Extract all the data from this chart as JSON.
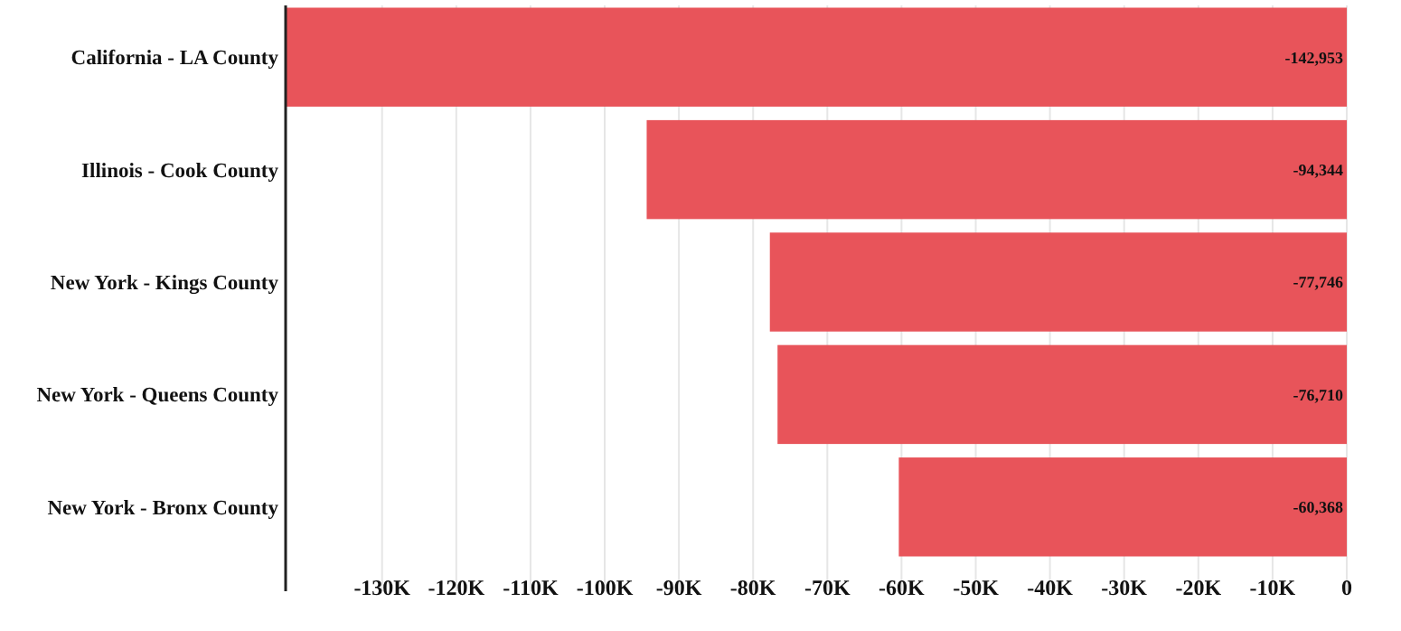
{
  "chart_data": {
    "type": "bar",
    "orientation": "horizontal",
    "categories": [
      "California - LA County",
      "Illinois - Cook County",
      "New York - Kings County",
      "New York - Queens County",
      "New York - Bronx County"
    ],
    "values": [
      -142953,
      -94344,
      -77746,
      -76710,
      -60368
    ],
    "value_labels": [
      "-142,953",
      "-94,344",
      "-77,746",
      "-76,710",
      "-60,368"
    ],
    "color": "#e8545a",
    "xlim": [
      -143000,
      0
    ],
    "xticks": [
      {
        "value": -130000,
        "label": "-130K"
      },
      {
        "value": -120000,
        "label": "-120K"
      },
      {
        "value": -110000,
        "label": "-110K"
      },
      {
        "value": -100000,
        "label": "-100K"
      },
      {
        "value": -90000,
        "label": "-90K"
      },
      {
        "value": -80000,
        "label": "-80K"
      },
      {
        "value": -70000,
        "label": "-70K"
      },
      {
        "value": -60000,
        "label": "-60K"
      },
      {
        "value": -50000,
        "label": "-50K"
      },
      {
        "value": -40000,
        "label": "-40K"
      },
      {
        "value": -30000,
        "label": "-30K"
      },
      {
        "value": -20000,
        "label": "-20K"
      },
      {
        "value": -10000,
        "label": "-10K"
      },
      0
    ],
    "grid": "x"
  }
}
